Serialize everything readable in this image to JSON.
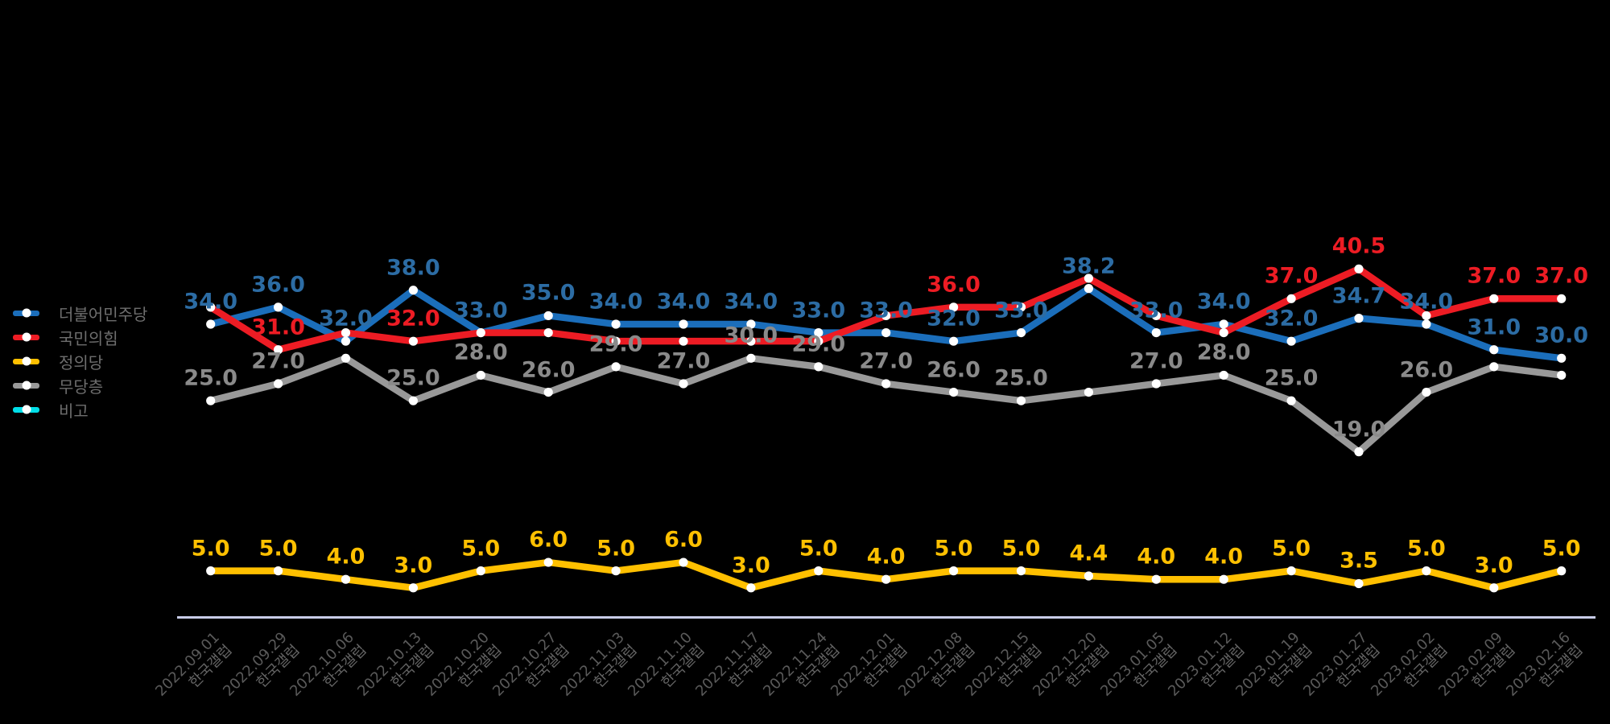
{
  "page": {
    "background": "#000000"
  },
  "axis": {
    "line_color": "#C8CCE8",
    "tick_source_label": "한국갤럽"
  },
  "legend": {
    "items": [
      {
        "label": "더불어민주당",
        "color": "#1B6EBB"
      },
      {
        "label": "국민의힘",
        "color": "#ED1C24"
      },
      {
        "label": "정의당",
        "color": "#FFC000"
      },
      {
        "label": "무당층",
        "color": "#999999"
      },
      {
        "label": "비고",
        "color": "#00DEE8"
      }
    ]
  },
  "chart_data": {
    "type": "line",
    "title": "",
    "grid": false,
    "legend_position": "left",
    "ylim": [
      0,
      45
    ],
    "x_categories": [
      {
        "date": "2022.09.01",
        "source": "한국갤럽"
      },
      {
        "date": "2022.09.29",
        "source": "한국갤럽"
      },
      {
        "date": "2022.10.06",
        "source": "한국갤럽"
      },
      {
        "date": "2022.10.13",
        "source": "한국갤럽"
      },
      {
        "date": "2022.10.20",
        "source": "한국갤럽"
      },
      {
        "date": "2022.10.27",
        "source": "한국갤럽"
      },
      {
        "date": "2022.11.03",
        "source": "한국갤럽"
      },
      {
        "date": "2022.11.10",
        "source": "한국갤럽"
      },
      {
        "date": "2022.11.17",
        "source": "한국갤럽"
      },
      {
        "date": "2022.11.24",
        "source": "한국갤럽"
      },
      {
        "date": "2022.12.01",
        "source": "한국갤럽"
      },
      {
        "date": "2022.12.08",
        "source": "한국갤럽"
      },
      {
        "date": "2022.12.15",
        "source": "한국갤럽"
      },
      {
        "date": "2022.12.20",
        "source": "한국갤럽"
      },
      {
        "date": "2023.01.05",
        "source": "한국갤럽"
      },
      {
        "date": "2023.01.12",
        "source": "한국갤럽"
      },
      {
        "date": "2023.01.19",
        "source": "한국갤럽"
      },
      {
        "date": "2023.01.27",
        "source": "한국갤럽"
      },
      {
        "date": "2023.02.02",
        "source": "한국갤럽"
      },
      {
        "date": "2023.02.09",
        "source": "한국갤럽"
      },
      {
        "date": "2023.02.16",
        "source": "한국갤럽"
      }
    ],
    "series": [
      {
        "name": "더불어민주당",
        "line_color": "#1B6EBB",
        "label_color": "#2C6CA4",
        "values": [
          34.0,
          36.0,
          32.0,
          38.0,
          33.0,
          35.0,
          34.0,
          34.0,
          34.0,
          33.0,
          33.0,
          32.0,
          33.0,
          38.2,
          33.0,
          34.0,
          32.0,
          34.7,
          34.0,
          31.0,
          30.0
        ],
        "labels": [
          "34.0",
          "36.0",
          "32.0",
          "38.0",
          "33.0",
          "35.0",
          "34.0",
          "34.0",
          "34.0",
          "33.0",
          "33.0",
          "32.0",
          "33.0",
          "38.2",
          "33.0",
          "34.0",
          "32.0",
          "34.7",
          "34.0",
          "31.0",
          "30.0"
        ]
      },
      {
        "name": "국민의힘",
        "line_color": "#ED1C24",
        "label_color": "#ED1C24",
        "values": [
          36.0,
          31.0,
          33.0,
          32.0,
          33.0,
          33.0,
          32.0,
          32.0,
          32.0,
          32.0,
          35.0,
          36.0,
          36.0,
          39.4,
          35.0,
          33.0,
          37.0,
          40.5,
          35.0,
          37.0,
          37.0
        ],
        "labels": [
          null,
          "31.0",
          null,
          "32.0",
          null,
          null,
          null,
          null,
          null,
          null,
          null,
          "36.0",
          null,
          null,
          null,
          null,
          "37.0",
          "40.5",
          null,
          "37.0",
          "37.0"
        ]
      },
      {
        "name": "정의당",
        "line_color": "#FFC000",
        "label_color": "#FFC000",
        "values": [
          5.0,
          5.0,
          4.0,
          3.0,
          5.0,
          6.0,
          5.0,
          6.0,
          3.0,
          5.0,
          4.0,
          5.0,
          5.0,
          4.4,
          4.0,
          4.0,
          5.0,
          3.5,
          5.0,
          3.0,
          5.0
        ],
        "labels": [
          "5.0",
          "5.0",
          "4.0",
          "3.0",
          "5.0",
          "6.0",
          "5.0",
          "6.0",
          "3.0",
          "5.0",
          "4.0",
          "5.0",
          "5.0",
          "4.4",
          "4.0",
          "4.0",
          "5.0",
          "3.5",
          "5.0",
          "3.0",
          "5.0"
        ]
      },
      {
        "name": "무당층",
        "line_color": "#999999",
        "label_color": "#8A8A8A",
        "values": [
          25.0,
          27.0,
          30.0,
          25.0,
          28.0,
          26.0,
          29.0,
          27.0,
          30.0,
          29.0,
          27.0,
          26.0,
          25.0,
          26.0,
          27.0,
          28.0,
          25.0,
          19.0,
          26.0,
          29.0,
          28.0
        ],
        "labels": [
          "25.0",
          "27.0",
          null,
          "25.0",
          "28.0",
          "26.0",
          "29.0",
          "27.0",
          "30.0",
          "29.0",
          "27.0",
          "26.0",
          "25.0",
          null,
          "27.0",
          "28.0",
          "25.0",
          "19.0",
          "26.0",
          null,
          null
        ]
      },
      {
        "name": "비고",
        "line_color": "#00DEE8",
        "label_color": "#00DEE8",
        "values": [],
        "labels": []
      }
    ]
  }
}
